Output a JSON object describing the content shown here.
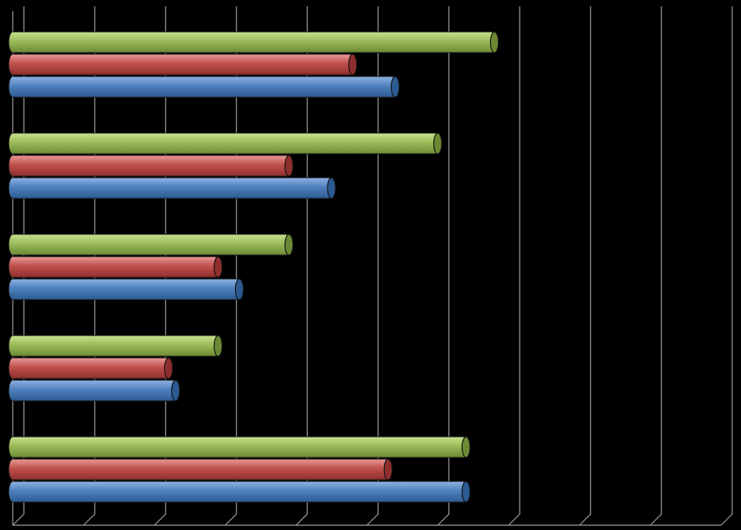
{
  "chart_data": {
    "type": "bar",
    "orientation": "horizontal",
    "style": "3d-cylinder",
    "categories": [
      "",
      "",
      "",
      "",
      ""
    ],
    "series": [
      {
        "values": [
          5.4,
          4.5,
          3.2,
          2.3,
          6.4
        ]
      },
      {
        "values": [
          4.8,
          3.9,
          2.9,
          2.2,
          5.3
        ]
      },
      {
        "values": [
          6.8,
          6.0,
          3.9,
          2.9,
          6.4
        ]
      }
    ],
    "series_colors": [
      "#4f81bd",
      "#c0504d",
      "#9bbb59"
    ],
    "xlim": [
      0,
      10
    ],
    "x_gridlines": true,
    "tick_labels_visible": false,
    "legend": "none",
    "title": "",
    "xlabel": "",
    "ylabel": ""
  }
}
